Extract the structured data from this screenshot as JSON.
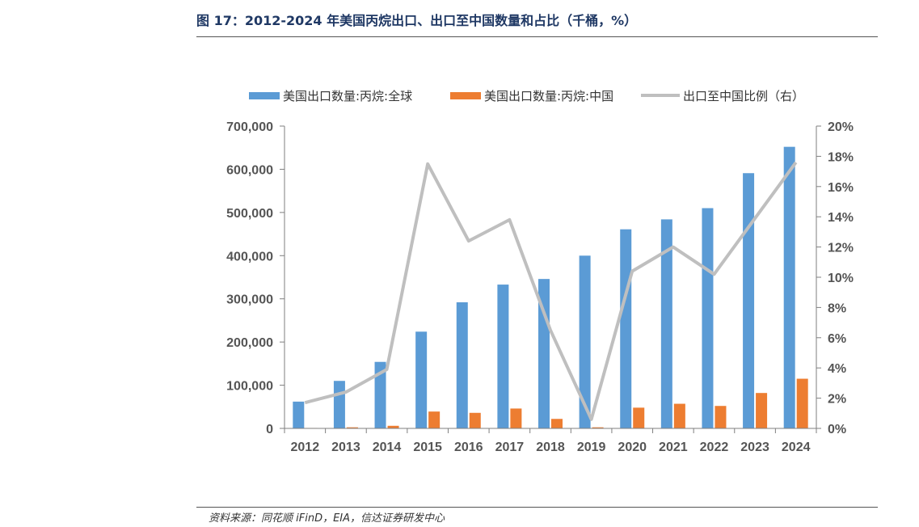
{
  "figure": {
    "title": "图 17：2012-2024 年美国丙烷出口、出口至中国数量和占比（千桶，%）",
    "source": "资料来源：同花顺 iFinD，EIA，信达证券研发中心"
  },
  "colors": {
    "global_bar": "#5b9bd5",
    "china_bar": "#ed7d31",
    "ratio_line": "#bfbfbf",
    "axis": "#7f7f7f"
  },
  "chart_data": {
    "type": "bar",
    "categories": [
      "2012",
      "2013",
      "2014",
      "2015",
      "2016",
      "2017",
      "2018",
      "2019",
      "2020",
      "2021",
      "2022",
      "2023",
      "2024"
    ],
    "series": [
      {
        "name": "美国出口数量:丙烷:全球",
        "type": "bar",
        "axis": "left",
        "values": [
          62000,
          110000,
          154000,
          224000,
          292000,
          333000,
          346000,
          400000,
          461000,
          484000,
          510000,
          591000,
          652000
        ]
      },
      {
        "name": "美国出口数量:丙烷:中国",
        "type": "bar",
        "axis": "left",
        "values": [
          1000,
          2500,
          6000,
          39000,
          36000,
          46000,
          22000,
          2500,
          48000,
          57000,
          52000,
          82000,
          115000
        ]
      },
      {
        "name": "出口至中国比例（右）",
        "type": "line",
        "axis": "right",
        "values": [
          1.7,
          2.4,
          3.9,
          17.5,
          12.4,
          13.8,
          6.5,
          0.6,
          10.4,
          12.0,
          10.2,
          13.9,
          17.6
        ]
      }
    ],
    "y_left": {
      "min": 0,
      "max": 700000,
      "ticks": [
        "0",
        "100,000",
        "200,000",
        "300,000",
        "400,000",
        "500,000",
        "600,000",
        "700,000"
      ]
    },
    "y_right": {
      "min": 0,
      "max": 20,
      "ticks": [
        "0%",
        "2%",
        "4%",
        "6%",
        "8%",
        "10%",
        "12%",
        "14%",
        "16%",
        "18%",
        "20%"
      ]
    },
    "legend_position": "top",
    "grid": false
  }
}
